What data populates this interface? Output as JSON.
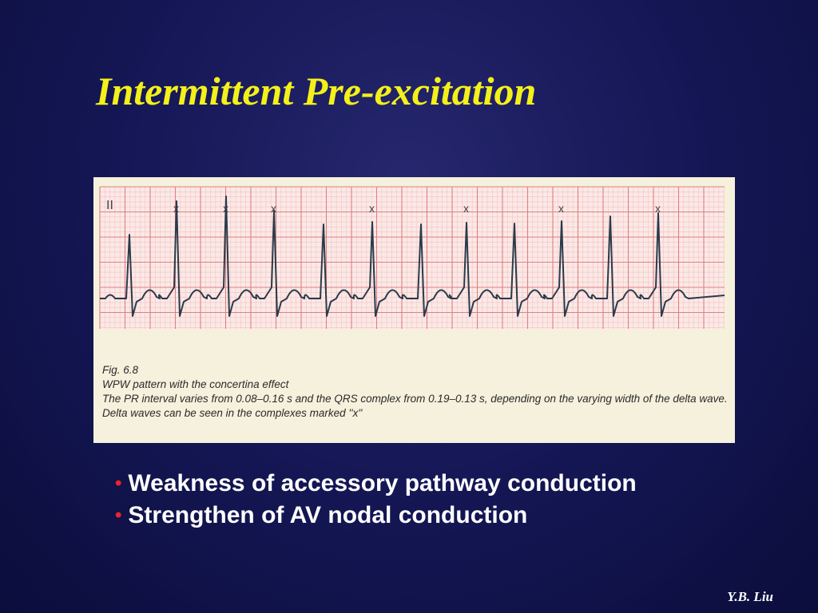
{
  "slide": {
    "title": "Intermittent Pre-excitation",
    "author": "Y.B. Liu",
    "bullets": [
      "Weakness of accessory pathway conduction",
      "Strengthen of AV nodal conduction"
    ]
  },
  "figure": {
    "lead_label": "II",
    "marker_label": "x",
    "caption": [
      "Fig. 6.8",
      "WPW pattern with the concertina effect",
      "The PR interval varies from 0.08–0.16 s and the QRS complex from 0.19–0.13 s, depending on the varying width of the delta wave.",
      "Delta waves can be seen in the complexes marked ''x''"
    ]
  },
  "colors": {
    "background": "#161858",
    "title": "#f4f01a",
    "bullet_marker": "#e8252b",
    "ecg_grid_major": "#e07f82",
    "ecg_grid_minor": "#f2c2c4",
    "ecg_trace": "#2a3a4a"
  }
}
